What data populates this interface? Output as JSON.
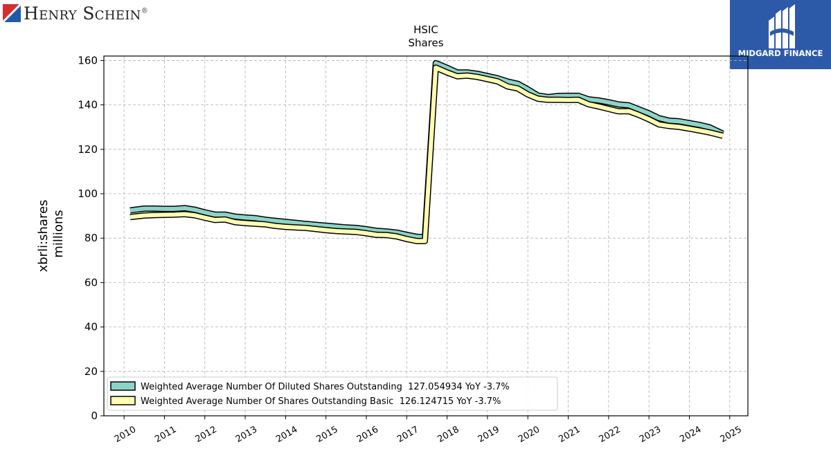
{
  "branding": {
    "company_logo_text": "Henry Schein",
    "company_logo_reg": "®",
    "partner_logo_text": "MIDGARD FINANCE"
  },
  "colors": {
    "diluted_fill": "#8dd3c7",
    "basic_fill": "#ffffb3",
    "outline": "#000000",
    "grid": "#b0b0b0",
    "logo_blue": "#2d5aa8",
    "logo_red": "#d62e2e"
  },
  "chart_data": {
    "type": "line",
    "title": "HSIC",
    "subtitle": "Shares",
    "ylabel": "xbrli:shares",
    "ylabel2": "millions",
    "xlabel": "",
    "xlim": [
      2009.5,
      2025.45
    ],
    "ylim": [
      0,
      162
    ],
    "yticks": [
      0,
      20,
      40,
      60,
      80,
      100,
      120,
      140,
      160
    ],
    "xticks": [
      "2010",
      "2011",
      "2012",
      "2013",
      "2014",
      "2015",
      "2016",
      "2017",
      "2018",
      "2019",
      "2020",
      "2021",
      "2022",
      "2023",
      "2024",
      "2025"
    ],
    "grid": true,
    "legend_position": "lower-left",
    "series": [
      {
        "name": "Weighted Average Number Of Diluted Shares Outstanding",
        "legend_label": "Weighted Average Number Of Diluted Shares Outstanding  127.054934 YoY -3.7%",
        "x": [
          2010.15,
          2010.5,
          2010.75,
          2011.0,
          2011.25,
          2011.5,
          2011.75,
          2012.0,
          2012.25,
          2012.5,
          2012.75,
          2013.0,
          2013.25,
          2013.5,
          2013.75,
          2014.0,
          2014.25,
          2014.5,
          2014.75,
          2015.0,
          2015.25,
          2015.5,
          2015.75,
          2016.0,
          2016.25,
          2016.5,
          2016.75,
          2017.0,
          2017.25,
          2017.45,
          2017.72,
          2018.0,
          2018.25,
          2018.5,
          2018.75,
          2019.0,
          2019.25,
          2019.5,
          2019.75,
          2020.0,
          2020.25,
          2020.5,
          2020.75,
          2021.0,
          2021.25,
          2021.5,
          2021.75,
          2022.0,
          2022.25,
          2022.5,
          2022.75,
          2023.0,
          2023.25,
          2023.5,
          2023.75,
          2024.0,
          2024.25,
          2024.5,
          2024.83
        ],
        "y": [
          92.5,
          93.3,
          93.3,
          93.2,
          93.2,
          93.5,
          92.8,
          91.6,
          90.6,
          90.6,
          89.7,
          89.3,
          89.0,
          88.3,
          87.8,
          87.3,
          86.9,
          86.4,
          86.0,
          85.6,
          85.2,
          84.8,
          84.6,
          84.0,
          83.3,
          83.0,
          82.5,
          81.5,
          80.6,
          80.4,
          158.8,
          156.7,
          154.6,
          154.6,
          154.0,
          153.0,
          152.0,
          150.5,
          149.5,
          147.0,
          144.2,
          143.5,
          144.0,
          144.1,
          144.1,
          142.5,
          142.0,
          141.2,
          140.2,
          139.8,
          138.0,
          136.2,
          134.0,
          132.9,
          132.6,
          131.8,
          131.0,
          129.9,
          127.05
        ]
      },
      {
        "name": "Weighted Average Number Of Shares Outstanding Basic",
        "legend_label": "Weighted Average Number Of Shares Outstanding Basic  126.124715 YoY -3.7%",
        "x": [
          2010.15,
          2010.5,
          2010.75,
          2011.0,
          2011.25,
          2011.5,
          2011.75,
          2012.0,
          2012.25,
          2012.5,
          2012.75,
          2013.0,
          2013.25,
          2013.5,
          2013.75,
          2014.0,
          2014.25,
          2014.5,
          2014.75,
          2015.0,
          2015.25,
          2015.5,
          2015.75,
          2016.0,
          2016.25,
          2016.5,
          2016.75,
          2017.0,
          2017.25,
          2017.45,
          2017.72,
          2018.0,
          2018.25,
          2018.5,
          2018.75,
          2019.0,
          2019.25,
          2019.5,
          2019.75,
          2020.0,
          2020.25,
          2020.5,
          2020.75,
          2021.0,
          2021.25,
          2021.5,
          2021.75,
          2022.0,
          2022.25,
          2022.5,
          2022.75,
          2023.0,
          2023.25,
          2023.5,
          2023.75,
          2024.0,
          2024.25,
          2024.5,
          2024.83
        ],
        "y": [
          89.5,
          90.2,
          90.4,
          90.5,
          90.6,
          90.8,
          90.3,
          89.2,
          88.2,
          88.4,
          87.2,
          86.8,
          86.5,
          86.2,
          85.5,
          85.1,
          84.8,
          84.6,
          84.1,
          83.6,
          83.2,
          83.0,
          82.8,
          82.2,
          81.5,
          81.4,
          80.8,
          79.6,
          78.7,
          78.7,
          156.8,
          154.6,
          152.9,
          153.2,
          152.6,
          151.6,
          150.6,
          148.3,
          147.4,
          144.7,
          142.8,
          142.3,
          142.3,
          142.2,
          142.3,
          140.3,
          139.3,
          138.2,
          137.1,
          137.2,
          135.5,
          133.5,
          131.2,
          130.5,
          130.1,
          129.3,
          128.5,
          127.6,
          126.12
        ]
      }
    ]
  }
}
